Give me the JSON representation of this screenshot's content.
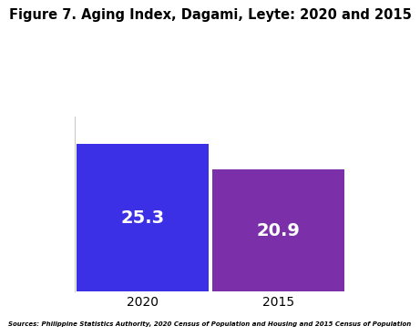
{
  "chart_data": {
    "type": "bar",
    "title": "Figure 7. Aging Index, Dagami, Leyte: 2020 and 2015",
    "source": "Sources: Philippine Statistics Authority, 2020 Census of Population and Housing and 2015 Census of Population",
    "categories": [
      "2020",
      "2015"
    ],
    "values": [
      25.3,
      20.9
    ],
    "colors": [
      "#3b30e6",
      "#7b2fa8"
    ],
    "ylim": [
      0,
      30
    ],
    "data_labels": true,
    "tick_labels": "x",
    "grid": false
  }
}
